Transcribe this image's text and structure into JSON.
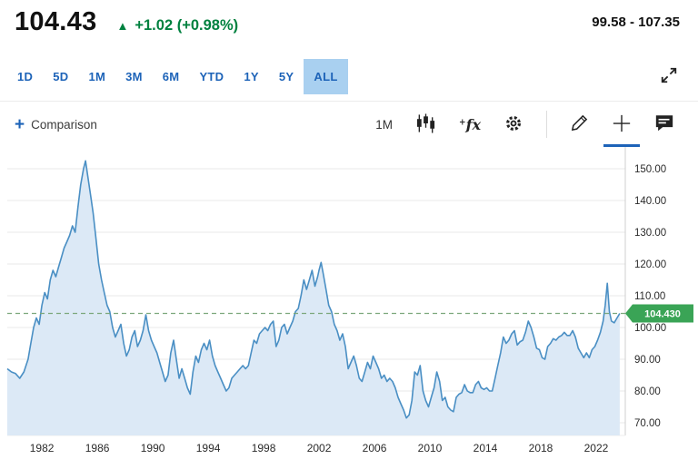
{
  "header": {
    "price": "104.43",
    "up_triangle": "▲",
    "change": "+1.02 (+0.98%)",
    "change_color": "#00813f",
    "day_range": "99.58 - 107.35"
  },
  "range_tabs": {
    "items": [
      "1D",
      "5D",
      "1M",
      "3M",
      "6M",
      "YTD",
      "1Y",
      "5Y",
      "ALL"
    ],
    "active": "ALL",
    "tab_color": "#1d63b8",
    "active_bg": "#a9d0f0"
  },
  "toolbar": {
    "comparison_plus": "+",
    "comparison_label": "Comparison",
    "interval_label": "1M",
    "fx_plus": "+",
    "fx_label": "fx",
    "icon_names": [
      "candlestick-chart-icon",
      "function-icon",
      "gear-icon",
      "draw-pencil-icon",
      "crosshair-icon",
      "annotation-icon"
    ],
    "active_tool": "crosshair-icon"
  },
  "chart_data": {
    "type": "area",
    "title": "",
    "xlabel": "",
    "ylabel": "",
    "grid": "horizontal",
    "legend": "none",
    "x_ticks": [
      1982,
      1986,
      1990,
      1994,
      1998,
      2002,
      2006,
      2010,
      2014,
      2018,
      2022
    ],
    "y_ticks": [
      150,
      140,
      130,
      120,
      110,
      100,
      90,
      80,
      70
    ],
    "y_tick_labels": [
      "150.00",
      "140.00",
      "130.00",
      "120.00",
      "110.00",
      "100.00",
      "90.00",
      "80.00",
      "70.00"
    ],
    "xlim": [
      1979.5,
      2024.1
    ],
    "ylim": [
      66,
      154
    ],
    "current_value": 104.43,
    "current_value_label": "104.430",
    "line_color": "#4a8fc4",
    "fill_color": "#dce9f6",
    "dashed_line_color": "#7ca87c",
    "tag_color": "#3aa456",
    "axis_text_color": "#2b2b2b",
    "grid_color": "#e8e8e8",
    "series": [
      {
        "name": "price",
        "points": [
          [
            1979.5,
            87
          ],
          [
            1979.8,
            86
          ],
          [
            1980.1,
            85.5
          ],
          [
            1980.4,
            84
          ],
          [
            1980.7,
            86
          ],
          [
            1981,
            90
          ],
          [
            1981.2,
            95
          ],
          [
            1981.4,
            100
          ],
          [
            1981.6,
            103
          ],
          [
            1981.8,
            101
          ],
          [
            1982,
            107
          ],
          [
            1982.2,
            111
          ],
          [
            1982.4,
            109
          ],
          [
            1982.6,
            115
          ],
          [
            1982.8,
            118
          ],
          [
            1983,
            116
          ],
          [
            1983.2,
            119
          ],
          [
            1983.4,
            122
          ],
          [
            1983.6,
            125
          ],
          [
            1983.8,
            127
          ],
          [
            1984,
            129
          ],
          [
            1984.2,
            132
          ],
          [
            1984.4,
            130
          ],
          [
            1984.6,
            138
          ],
          [
            1984.8,
            145
          ],
          [
            1985,
            150
          ],
          [
            1985.15,
            152.5
          ],
          [
            1985.3,
            148
          ],
          [
            1985.5,
            142
          ],
          [
            1985.7,
            136
          ],
          [
            1985.9,
            128
          ],
          [
            1986.1,
            120
          ],
          [
            1986.3,
            115
          ],
          [
            1986.5,
            111
          ],
          [
            1986.7,
            107
          ],
          [
            1986.9,
            105
          ],
          [
            1987.1,
            100
          ],
          [
            1987.3,
            97
          ],
          [
            1987.5,
            99
          ],
          [
            1987.7,
            101
          ],
          [
            1987.9,
            95
          ],
          [
            1988.1,
            91
          ],
          [
            1988.3,
            93
          ],
          [
            1988.5,
            97
          ],
          [
            1988.7,
            99
          ],
          [
            1988.9,
            94
          ],
          [
            1989.1,
            96
          ],
          [
            1989.3,
            99
          ],
          [
            1989.5,
            104
          ],
          [
            1989.7,
            99
          ],
          [
            1989.9,
            96
          ],
          [
            1990.1,
            94
          ],
          [
            1990.3,
            92
          ],
          [
            1990.5,
            89
          ],
          [
            1990.7,
            86
          ],
          [
            1990.9,
            83
          ],
          [
            1991.1,
            85
          ],
          [
            1991.3,
            92
          ],
          [
            1991.5,
            96
          ],
          [
            1991.7,
            90
          ],
          [
            1991.9,
            84
          ],
          [
            1992.1,
            87
          ],
          [
            1992.3,
            84
          ],
          [
            1992.5,
            81
          ],
          [
            1992.7,
            79
          ],
          [
            1992.9,
            86
          ],
          [
            1993.1,
            91
          ],
          [
            1993.3,
            89
          ],
          [
            1993.5,
            93
          ],
          [
            1993.7,
            95
          ],
          [
            1993.9,
            93
          ],
          [
            1994.1,
            96
          ],
          [
            1994.3,
            91
          ],
          [
            1994.5,
            88
          ],
          [
            1994.7,
            86
          ],
          [
            1994.9,
            84
          ],
          [
            1995.1,
            82
          ],
          [
            1995.3,
            80
          ],
          [
            1995.5,
            81
          ],
          [
            1995.7,
            84
          ],
          [
            1995.9,
            85
          ],
          [
            1996.1,
            86
          ],
          [
            1996.3,
            87
          ],
          [
            1996.5,
            88
          ],
          [
            1996.7,
            87
          ],
          [
            1996.9,
            88
          ],
          [
            1997.1,
            92
          ],
          [
            1997.3,
            96
          ],
          [
            1997.5,
            95
          ],
          [
            1997.7,
            98
          ],
          [
            1997.9,
            99
          ],
          [
            1998.1,
            100
          ],
          [
            1998.3,
            99
          ],
          [
            1998.5,
            101
          ],
          [
            1998.7,
            102
          ],
          [
            1998.9,
            94
          ],
          [
            1999.1,
            96
          ],
          [
            1999.3,
            100
          ],
          [
            1999.5,
            101
          ],
          [
            1999.7,
            98
          ],
          [
            1999.9,
            100
          ],
          [
            2000.1,
            102
          ],
          [
            2000.3,
            105
          ],
          [
            2000.5,
            106
          ],
          [
            2000.7,
            110
          ],
          [
            2000.9,
            115
          ],
          [
            2001.1,
            112
          ],
          [
            2001.3,
            115
          ],
          [
            2001.5,
            118
          ],
          [
            2001.7,
            113
          ],
          [
            2001.9,
            116
          ],
          [
            2002,
            118
          ],
          [
            2002.15,
            120.5
          ],
          [
            2002.3,
            117
          ],
          [
            2002.5,
            112
          ],
          [
            2002.7,
            107
          ],
          [
            2002.9,
            105
          ],
          [
            2003.1,
            101
          ],
          [
            2003.3,
            99
          ],
          [
            2003.5,
            96
          ],
          [
            2003.7,
            98
          ],
          [
            2003.9,
            94
          ],
          [
            2004.1,
            87
          ],
          [
            2004.3,
            89
          ],
          [
            2004.5,
            91
          ],
          [
            2004.7,
            88
          ],
          [
            2004.9,
            84
          ],
          [
            2005.1,
            83
          ],
          [
            2005.3,
            86
          ],
          [
            2005.5,
            89
          ],
          [
            2005.7,
            87
          ],
          [
            2005.9,
            91
          ],
          [
            2006.1,
            89
          ],
          [
            2006.3,
            87
          ],
          [
            2006.5,
            84
          ],
          [
            2006.7,
            85
          ],
          [
            2006.9,
            83
          ],
          [
            2007.1,
            84
          ],
          [
            2007.3,
            83
          ],
          [
            2007.5,
            81
          ],
          [
            2007.7,
            78
          ],
          [
            2007.9,
            76
          ],
          [
            2008.1,
            74
          ],
          [
            2008.3,
            71.5
          ],
          [
            2008.5,
            72.5
          ],
          [
            2008.7,
            77
          ],
          [
            2008.9,
            86
          ],
          [
            2009.1,
            85
          ],
          [
            2009.3,
            88
          ],
          [
            2009.5,
            80
          ],
          [
            2009.7,
            77
          ],
          [
            2009.9,
            75
          ],
          [
            2010.1,
            78
          ],
          [
            2010.3,
            81
          ],
          [
            2010.5,
            86
          ],
          [
            2010.7,
            83
          ],
          [
            2010.9,
            77
          ],
          [
            2011.1,
            78
          ],
          [
            2011.3,
            75
          ],
          [
            2011.5,
            74
          ],
          [
            2011.7,
            73.5
          ],
          [
            2011.9,
            78
          ],
          [
            2012.1,
            79
          ],
          [
            2012.3,
            79.5
          ],
          [
            2012.5,
            82
          ],
          [
            2012.7,
            80
          ],
          [
            2012.9,
            79.5
          ],
          [
            2013.1,
            79.5
          ],
          [
            2013.3,
            82
          ],
          [
            2013.5,
            83
          ],
          [
            2013.7,
            81
          ],
          [
            2013.9,
            80.5
          ],
          [
            2014.1,
            81
          ],
          [
            2014.3,
            80
          ],
          [
            2014.5,
            80
          ],
          [
            2014.7,
            84
          ],
          [
            2014.9,
            88
          ],
          [
            2015.1,
            92
          ],
          [
            2015.3,
            97
          ],
          [
            2015.5,
            95
          ],
          [
            2015.7,
            96
          ],
          [
            2015.9,
            98
          ],
          [
            2016.1,
            99
          ],
          [
            2016.3,
            94.5
          ],
          [
            2016.5,
            95.5
          ],
          [
            2016.7,
            96
          ],
          [
            2016.9,
            98.5
          ],
          [
            2017.1,
            102
          ],
          [
            2017.3,
            100
          ],
          [
            2017.5,
            97
          ],
          [
            2017.7,
            93.5
          ],
          [
            2017.9,
            93
          ],
          [
            2018.1,
            90.5
          ],
          [
            2018.3,
            90
          ],
          [
            2018.5,
            94
          ],
          [
            2018.7,
            95
          ],
          [
            2018.9,
            96.5
          ],
          [
            2019.1,
            96
          ],
          [
            2019.3,
            97
          ],
          [
            2019.5,
            97.5
          ],
          [
            2019.7,
            98.5
          ],
          [
            2019.9,
            97.5
          ],
          [
            2020.1,
            97.5
          ],
          [
            2020.3,
            99
          ],
          [
            2020.5,
            97
          ],
          [
            2020.7,
            93.5
          ],
          [
            2020.9,
            92
          ],
          [
            2021.1,
            90.5
          ],
          [
            2021.3,
            92
          ],
          [
            2021.5,
            90.5
          ],
          [
            2021.7,
            93
          ],
          [
            2021.9,
            94
          ],
          [
            2022.1,
            96
          ],
          [
            2022.3,
            98.5
          ],
          [
            2022.5,
            102
          ],
          [
            2022.65,
            107
          ],
          [
            2022.8,
            113.9
          ],
          [
            2022.95,
            105
          ],
          [
            2023.1,
            102
          ],
          [
            2023.3,
            101.5
          ],
          [
            2023.5,
            103
          ],
          [
            2023.7,
            104.43
          ]
        ]
      }
    ]
  }
}
